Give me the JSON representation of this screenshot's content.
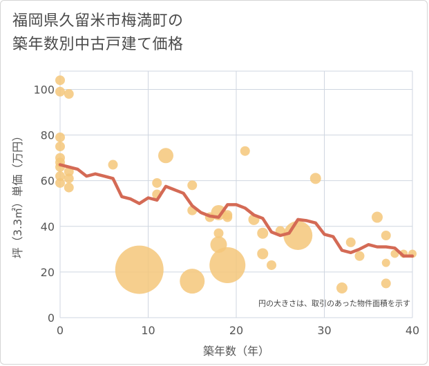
{
  "chart_data": {
    "type": "scatter",
    "title_lines": [
      "福岡県久留米市梅満町の",
      "築年数別中古戸建て価格"
    ],
    "xlabel": "築年数（年）",
    "ylabel": "坪（3.3㎡）単価（万円）",
    "annotation": "円の大きさは、取引のあった物件面積を示す",
    "xlim": [
      0,
      40
    ],
    "ylim": [
      0,
      108
    ],
    "xticks": [
      0,
      10,
      20,
      30,
      40
    ],
    "yticks": [
      0,
      20,
      40,
      60,
      80,
      100
    ],
    "grid": true,
    "colors": {
      "bubble": "#f5c77a",
      "line": "#d46a55",
      "grid": "#cfd6e0"
    },
    "bubbles": [
      {
        "x": 0,
        "y": 104,
        "r": 7
      },
      {
        "x": 0,
        "y": 99,
        "r": 7
      },
      {
        "x": 1,
        "y": 98,
        "r": 7
      },
      {
        "x": 0,
        "y": 79,
        "r": 7
      },
      {
        "x": 0,
        "y": 75,
        "r": 7
      },
      {
        "x": 0,
        "y": 70,
        "r": 7
      },
      {
        "x": 0,
        "y": 68,
        "r": 7
      },
      {
        "x": 0,
        "y": 66,
        "r": 7
      },
      {
        "x": 0,
        "y": 62,
        "r": 7
      },
      {
        "x": 0,
        "y": 59,
        "r": 7
      },
      {
        "x": 1,
        "y": 64,
        "r": 7
      },
      {
        "x": 1,
        "y": 61,
        "r": 7
      },
      {
        "x": 1,
        "y": 57,
        "r": 7
      },
      {
        "x": 6,
        "y": 67,
        "r": 7
      },
      {
        "x": 11,
        "y": 59,
        "r": 7
      },
      {
        "x": 11,
        "y": 54,
        "r": 7
      },
      {
        "x": 12,
        "y": 71,
        "r": 11
      },
      {
        "x": 15,
        "y": 58,
        "r": 7
      },
      {
        "x": 15,
        "y": 47,
        "r": 7
      },
      {
        "x": 17,
        "y": 44,
        "r": 7
      },
      {
        "x": 18,
        "y": 46,
        "r": 11
      },
      {
        "x": 18,
        "y": 37,
        "r": 7
      },
      {
        "x": 18,
        "y": 32,
        "r": 12
      },
      {
        "x": 19,
        "y": 45,
        "r": 7
      },
      {
        "x": 19,
        "y": 44,
        "r": 7
      },
      {
        "x": 21,
        "y": 73,
        "r": 7
      },
      {
        "x": 22,
        "y": 43,
        "r": 8
      },
      {
        "x": 23,
        "y": 37,
        "r": 8
      },
      {
        "x": 23,
        "y": 28,
        "r": 8
      },
      {
        "x": 24,
        "y": 23,
        "r": 7
      },
      {
        "x": 25,
        "y": 38,
        "r": 7
      },
      {
        "x": 27,
        "y": 36,
        "r": 21
      },
      {
        "x": 29,
        "y": 61,
        "r": 8
      },
      {
        "x": 32,
        "y": 13,
        "r": 8
      },
      {
        "x": 33,
        "y": 33,
        "r": 7
      },
      {
        "x": 34,
        "y": 27,
        "r": 7
      },
      {
        "x": 36,
        "y": 44,
        "r": 8
      },
      {
        "x": 37,
        "y": 36,
        "r": 7
      },
      {
        "x": 37,
        "y": 24,
        "r": 6
      },
      {
        "x": 37,
        "y": 15,
        "r": 7
      },
      {
        "x": 38,
        "y": 28,
        "r": 6
      },
      {
        "x": 39,
        "y": 28,
        "r": 6
      },
      {
        "x": 40,
        "y": 28,
        "r": 6
      },
      {
        "x": 9,
        "y": 21,
        "r": 35
      },
      {
        "x": 15,
        "y": 16,
        "r": 18
      },
      {
        "x": 19,
        "y": 23,
        "r": 26
      }
    ],
    "series": [
      {
        "type": "line",
        "x": [
          0,
          1,
          2,
          3,
          4,
          5,
          6,
          7,
          8,
          9,
          10,
          11,
          12,
          13,
          14,
          15,
          16,
          17,
          18,
          19,
          20,
          21,
          22,
          23,
          24,
          25,
          26,
          27,
          28,
          29,
          30,
          31,
          32,
          33,
          34,
          35,
          36,
          37,
          38,
          39,
          40
        ],
        "values": [
          67,
          66,
          65,
          62,
          63,
          62,
          61,
          53,
          52,
          50,
          52.5,
          51.5,
          57.5,
          56,
          54.5,
          49,
          46,
          44.5,
          44,
          49.5,
          49.5,
          48,
          45,
          43.5,
          37.5,
          36,
          37,
          43,
          42.5,
          41.5,
          36.5,
          35.5,
          29.5,
          28.5,
          30,
          32,
          31,
          31,
          30.5,
          27,
          27
        ]
      }
    ]
  }
}
